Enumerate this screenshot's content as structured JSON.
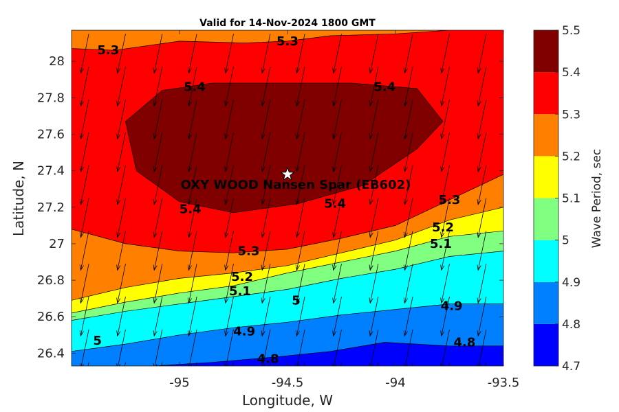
{
  "chart_data": {
    "type": "contour",
    "title": "Valid for 14-Nov-2024 1800 GMT",
    "xlabel": "Longitude, W",
    "ylabel": "Latitude, N",
    "xlim": [
      -95.5,
      -93.5
    ],
    "ylim": [
      26.33,
      28.17
    ],
    "xticks": [
      -95,
      -94.5,
      -94,
      -93.5
    ],
    "xtick_labels": [
      "-95",
      "-94.5",
      "-94",
      "-93.5"
    ],
    "yticks": [
      26.4,
      26.6,
      26.8,
      27.0,
      27.2,
      27.4,
      27.6,
      27.8,
      28.0
    ],
    "ytick_labels": [
      "26.4",
      "26.6",
      "26.8",
      "27",
      "27.2",
      "27.4",
      "27.6",
      "27.8",
      "28"
    ],
    "colorbar": {
      "label": "Wave Period, sec",
      "levels": [
        4.7,
        4.8,
        4.9,
        5.0,
        5.1,
        5.2,
        5.3,
        5.4,
        5.5
      ],
      "tick_labels": [
        "4.7",
        "4.8",
        "4.9",
        "5",
        "5.1",
        "5.2",
        "5.3",
        "5.4",
        "5.5"
      ],
      "colors": [
        "#0000ff",
        "#0080ff",
        "#00ffff",
        "#80ff80",
        "#ffff00",
        "#ff8000",
        "#ff0000",
        "#800000"
      ]
    },
    "contours": [
      {
        "level": 4.8,
        "points": [
          [
            -95.5,
            26.33
          ],
          [
            -95.12,
            26.33
          ],
          [
            -94.85,
            26.35
          ],
          [
            -94.55,
            26.38
          ],
          [
            -94.3,
            26.41
          ],
          [
            -94.05,
            26.46
          ],
          [
            -93.75,
            26.44
          ],
          [
            -93.5,
            26.44
          ],
          [
            -93.5,
            26.33
          ]
        ]
      },
      {
        "level": 4.9,
        "points": [
          [
            -95.5,
            26.33
          ],
          [
            -95.5,
            26.41
          ],
          [
            -95.25,
            26.45
          ],
          [
            -95.0,
            26.5
          ],
          [
            -94.75,
            26.54
          ],
          [
            -94.5,
            26.57
          ],
          [
            -94.25,
            26.61
          ],
          [
            -94.0,
            26.64
          ],
          [
            -93.75,
            26.67
          ],
          [
            -93.5,
            26.67
          ],
          [
            -93.5,
            26.33
          ]
        ]
      },
      {
        "level": 5.0,
        "points": [
          [
            -95.5,
            26.33
          ],
          [
            -95.5,
            26.58
          ],
          [
            -95.25,
            26.63
          ],
          [
            -95.0,
            26.67
          ],
          [
            -94.75,
            26.71
          ],
          [
            -94.5,
            26.75
          ],
          [
            -94.25,
            26.81
          ],
          [
            -94.0,
            26.86
          ],
          [
            -93.75,
            26.93
          ],
          [
            -93.5,
            26.96
          ],
          [
            -93.5,
            26.33
          ]
        ]
      },
      {
        "level": 5.1,
        "points": [
          [
            -95.5,
            26.33
          ],
          [
            -95.5,
            26.62
          ],
          [
            -95.25,
            26.68
          ],
          [
            -95.0,
            26.73
          ],
          [
            -94.75,
            26.77
          ],
          [
            -94.5,
            26.84
          ],
          [
            -94.25,
            26.9
          ],
          [
            -94.0,
            26.96
          ],
          [
            -93.75,
            27.04
          ],
          [
            -93.5,
            27.07
          ],
          [
            -93.5,
            26.33
          ]
        ]
      },
      {
        "level": 5.2,
        "points": [
          [
            -95.5,
            26.33
          ],
          [
            -95.5,
            26.69
          ],
          [
            -95.25,
            26.76
          ],
          [
            -95.0,
            26.81
          ],
          [
            -94.75,
            26.84
          ],
          [
            -94.5,
            26.88
          ],
          [
            -94.25,
            26.95
          ],
          [
            -94.0,
            27.02
          ],
          [
            -93.75,
            27.13
          ],
          [
            -93.5,
            27.2
          ],
          [
            -93.5,
            26.33
          ]
        ]
      },
      {
        "level": 5.3,
        "points": [
          [
            -95.5,
            26.33
          ],
          [
            -95.5,
            27.08
          ],
          [
            -95.25,
            27.0
          ],
          [
            -95.0,
            26.96
          ],
          [
            -94.75,
            26.95
          ],
          [
            -94.5,
            26.97
          ],
          [
            -94.25,
            27.03
          ],
          [
            -94.0,
            27.1
          ],
          [
            -93.75,
            27.24
          ],
          [
            -93.5,
            27.38
          ],
          [
            -93.5,
            26.33
          ]
        ]
      },
      {
        "level": 5.4,
        "points": [
          [
            -95.25,
            27.67
          ],
          [
            -95.08,
            27.84
          ],
          [
            -94.85,
            27.88
          ],
          [
            -94.5,
            27.88
          ],
          [
            -94.2,
            27.88
          ],
          [
            -93.9,
            27.85
          ],
          [
            -93.78,
            27.67
          ],
          [
            -93.9,
            27.52
          ],
          [
            -94.15,
            27.32
          ],
          [
            -94.45,
            27.22
          ],
          [
            -94.75,
            27.17
          ],
          [
            -95.0,
            27.23
          ],
          [
            -95.2,
            27.4
          ]
        ]
      },
      {
        "level": 5.3,
        "points": [
          [
            -95.5,
            28.17
          ],
          [
            -95.5,
            28.07
          ],
          [
            -95.3,
            28.06
          ],
          [
            -95.0,
            28.11
          ],
          [
            -94.7,
            28.1
          ],
          [
            -94.5,
            28.11
          ],
          [
            -94.3,
            28.14
          ],
          [
            -94.0,
            28.15
          ],
          [
            -93.75,
            28.17
          ]
        ]
      }
    ],
    "contour_labels": [
      {
        "text": "5.3",
        "x": -95.33,
        "y": 28.06
      },
      {
        "text": "5.3",
        "x": -94.5,
        "y": 28.11
      },
      {
        "text": "5.4",
        "x": -94.93,
        "y": 27.86
      },
      {
        "text": "5.4",
        "x": -94.05,
        "y": 27.86
      },
      {
        "text": "5.4",
        "x": -94.95,
        "y": 27.19
      },
      {
        "text": "5.4",
        "x": -94.28,
        "y": 27.22
      },
      {
        "text": "5.3",
        "x": -93.75,
        "y": 27.24
      },
      {
        "text": "5.2",
        "x": -93.78,
        "y": 27.09
      },
      {
        "text": "5.1",
        "x": -93.79,
        "y": 27.0
      },
      {
        "text": "5.3",
        "x": -94.68,
        "y": 26.96
      },
      {
        "text": "5.2",
        "x": -94.71,
        "y": 26.82
      },
      {
        "text": "5.1",
        "x": -94.72,
        "y": 26.74
      },
      {
        "text": "5",
        "x": -94.46,
        "y": 26.69
      },
      {
        "text": "4.9",
        "x": -93.74,
        "y": 26.66
      },
      {
        "text": "4.9",
        "x": -94.7,
        "y": 26.52
      },
      {
        "text": "5",
        "x": -95.38,
        "y": 26.47
      },
      {
        "text": "4.8",
        "x": -94.59,
        "y": 26.37
      },
      {
        "text": "4.8",
        "x": -93.68,
        "y": 26.46
      }
    ],
    "station": {
      "name": "OXY WOOD Nansen Spar (EB602)",
      "lon": -94.5,
      "lat": 27.38
    },
    "wind_vectors": {
      "x": [
        -95.42,
        -95.25,
        -95.08,
        -94.92,
        -94.75,
        -94.58,
        -94.42,
        -94.25,
        -94.08,
        -93.92,
        -93.75,
        -93.58
      ],
      "y": [
        26.35,
        26.53,
        26.71,
        26.89,
        27.07,
        27.25,
        27.43,
        27.61,
        27.79,
        27.97,
        28.15
      ],
      "u": -0.09,
      "v": -0.44
    }
  }
}
